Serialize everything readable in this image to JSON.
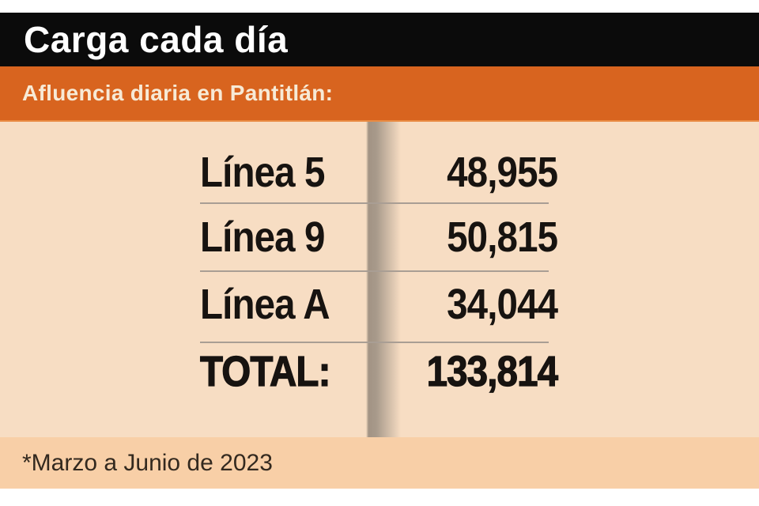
{
  "header": {
    "title": "Carga cada día"
  },
  "subheader": {
    "text": "Afluencia diaria en Pantitlán:"
  },
  "table": {
    "rows": [
      {
        "label": "Línea 5",
        "value": "48,955"
      },
      {
        "label": "Línea 9",
        "value": "50,815"
      },
      {
        "label": "Línea A",
        "value": "34,044"
      }
    ],
    "total": {
      "label": "TOTAL:",
      "value": "133,814"
    }
  },
  "footer": {
    "note": "*Marzo a Junio de 2023"
  },
  "colors": {
    "header_bg": "#0b0b0b",
    "accent_orange": "#d8641f",
    "body_bg": "#f7ddc3",
    "footer_bg": "#f8cfa7",
    "text_dark": "#171310",
    "divider": "#a89a8b",
    "separator_line": "#a99e94",
    "subtitle_text": "#f7ead6"
  },
  "chart_data": {
    "type": "table",
    "title": "Carga cada día",
    "subtitle": "Afluencia diaria en Pantitlán:",
    "categories": [
      "Línea 5",
      "Línea 9",
      "Línea A",
      "TOTAL:"
    ],
    "values": [
      48955,
      50815,
      34044,
      133814
    ],
    "note": "*Marzo a Junio de 2023",
    "legend_position": "none",
    "grid": false
  }
}
